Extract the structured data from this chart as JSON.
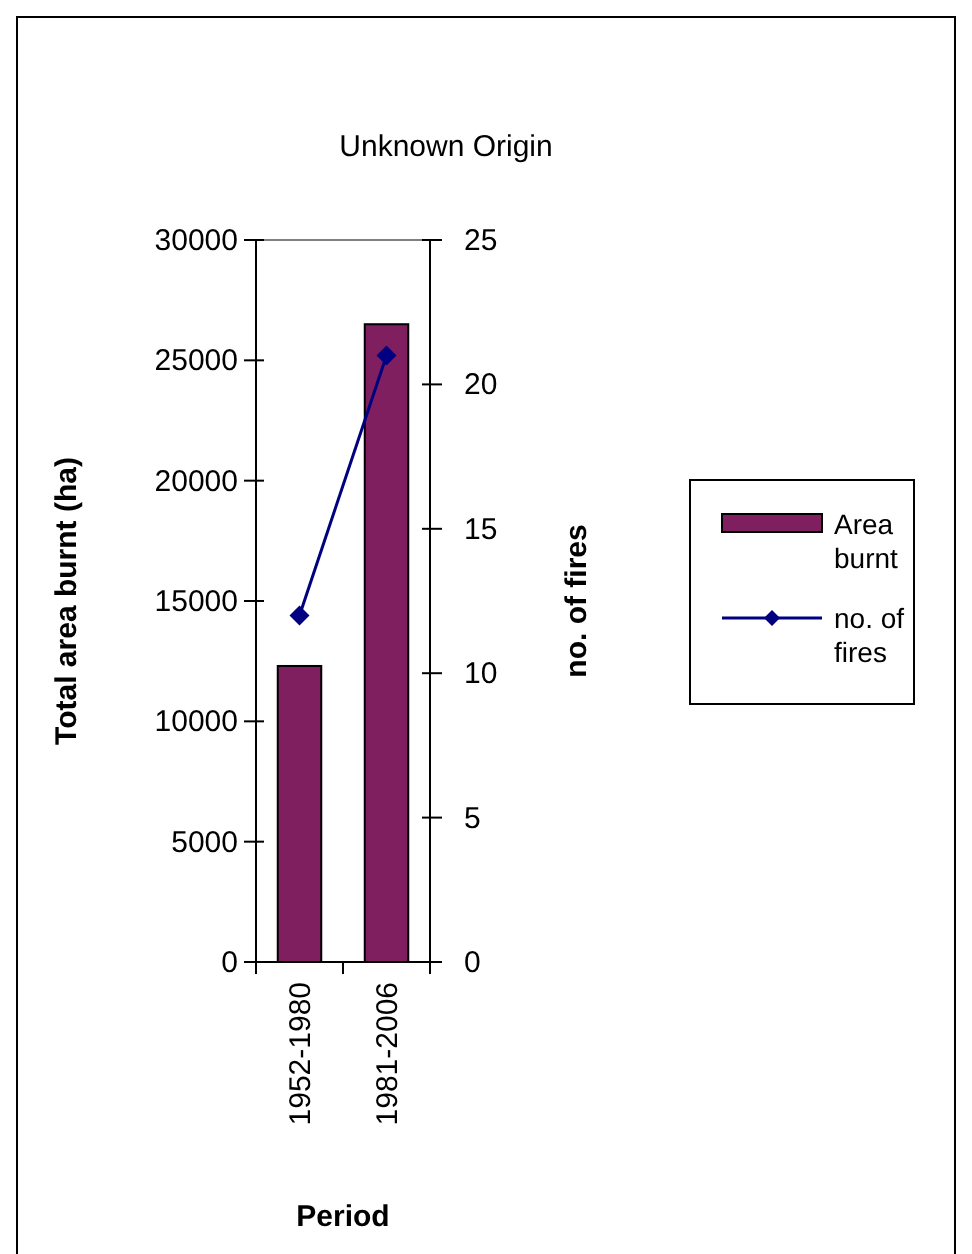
{
  "chart_data": {
    "type": "bar",
    "title": "Unknown Origin",
    "xlabel": "Period",
    "ylabel": "Total area burnt (ha)",
    "y2label": "no. of fires",
    "categories": [
      "1952-1980",
      "1981-2006"
    ],
    "series": [
      {
        "name": "Area burnt",
        "color": "#7f1f5f",
        "values": [
          12300,
          26500
        ]
      },
      {
        "name": "no. of fires",
        "type": "line",
        "axis": "y2",
        "color": "#000080",
        "marker": "diamond",
        "values": [
          12,
          21
        ]
      }
    ],
    "ylim": [
      0,
      30000
    ],
    "yticks": [
      0,
      5000,
      10000,
      15000,
      20000,
      25000,
      30000
    ],
    "y2lim": [
      0,
      25
    ],
    "y2ticks": [
      0,
      5,
      10,
      15,
      20,
      25
    ],
    "legend": "right"
  }
}
